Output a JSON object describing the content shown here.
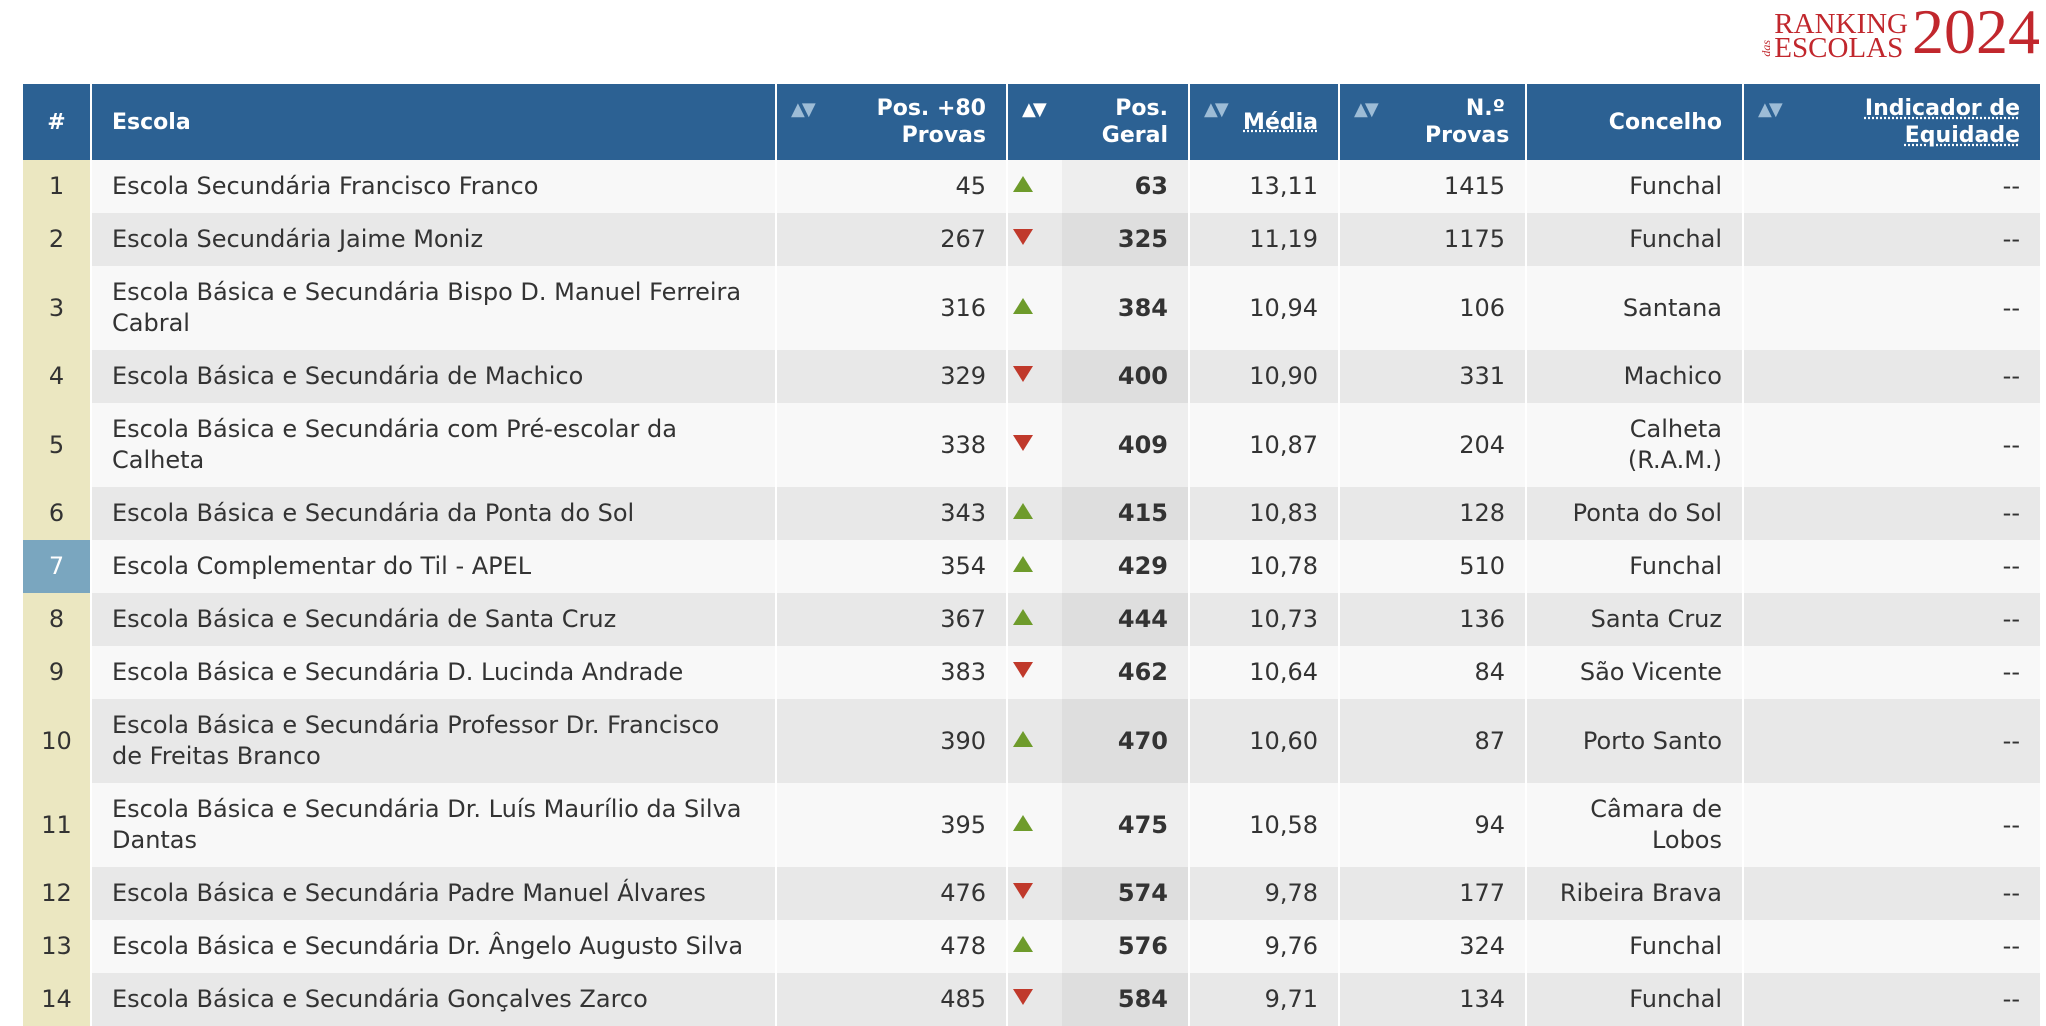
{
  "logo": {
    "ranking": "RANKING",
    "das": "das",
    "escolas": "ESCOLAS",
    "year": "2024"
  },
  "table": {
    "headers": [
      "#",
      "Escola",
      "Pos. +80 Provas",
      "Pos. Geral",
      "Média",
      "N.º Provas",
      "Concelho",
      "Indicador de Equidade"
    ],
    "rows": [
      [
        1,
        "Escola Secundária Francisco Franco",
        45,
        "up",
        63,
        "13,11",
        1415,
        "Funchal",
        "--"
      ],
      [
        2,
        "Escola Secundária Jaime Moniz",
        267,
        "down",
        325,
        "11,19",
        1175,
        "Funchal",
        "--"
      ],
      [
        3,
        "Escola Básica e Secundária Bispo D. Manuel Ferreira Cabral",
        316,
        "up",
        384,
        "10,94",
        106,
        "Santana",
        "--"
      ],
      [
        4,
        "Escola Básica e Secundária de Machico",
        329,
        "down",
        400,
        "10,90",
        331,
        "Machico",
        "--"
      ],
      [
        5,
        "Escola Básica e Secundária com Pré-escolar da Calheta",
        338,
        "down",
        409,
        "10,87",
        204,
        "Calheta (R.A.M.)",
        "--"
      ],
      [
        6,
        "Escola Básica e Secundária da Ponta do Sol",
        343,
        "up",
        415,
        "10,83",
        128,
        "Ponta do Sol",
        "--"
      ],
      [
        7,
        "Escola Complementar do Til - APEL",
        354,
        "up",
        429,
        "10,78",
        510,
        "Funchal",
        "--"
      ],
      [
        8,
        "Escola Básica e Secundária de Santa Cruz",
        367,
        "up",
        444,
        "10,73",
        136,
        "Santa Cruz",
        "--"
      ],
      [
        9,
        "Escola Básica e Secundária D. Lucinda Andrade",
        383,
        "down",
        462,
        "10,64",
        84,
        "São Vicente",
        "--"
      ],
      [
        10,
        "Escola Básica e Secundária Professor Dr. Francisco de Freitas Branco",
        390,
        "up",
        470,
        "10,60",
        87,
        "Porto Santo",
        "--"
      ],
      [
        11,
        "Escola Básica e Secundária Dr. Luís Maurílio da Silva Dantas",
        395,
        "up",
        475,
        "10,58",
        94,
        "Câmara de Lobos",
        "--"
      ],
      [
        12,
        "Escola Básica e Secundária Padre Manuel Álvares",
        476,
        "down",
        574,
        "9,78",
        177,
        "Ribeira Brava",
        "--"
      ],
      [
        13,
        "Escola Básica e Secundária Dr. Ângelo Augusto Silva",
        478,
        "up",
        576,
        "9,76",
        324,
        "Funchal",
        "--"
      ],
      [
        14,
        "Escola Básica e Secundária Gonçalves Zarco",
        485,
        "down",
        584,
        "9,71",
        134,
        "Funchal",
        "--"
      ]
    ],
    "highlight_row": 6
  }
}
